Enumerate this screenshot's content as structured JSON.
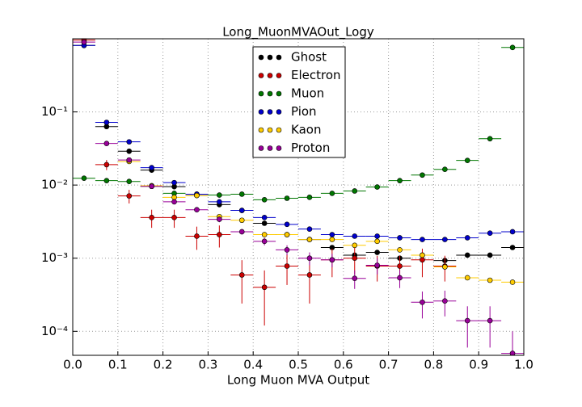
{
  "chart_data": {
    "type": "errorbar",
    "title": "Long_MuonMVAOut_Logy",
    "xlabel": "Long Muon MVA Output",
    "x": [
      0.025,
      0.075,
      0.125,
      0.175,
      0.225,
      0.275,
      0.325,
      0.375,
      0.425,
      0.475,
      0.525,
      0.575,
      0.625,
      0.675,
      0.725,
      0.775,
      0.825,
      0.875,
      0.925,
      0.975
    ],
    "xerr": 0.025,
    "xlim": [
      0,
      1
    ],
    "xticks": [
      {
        "value": 0,
        "label": "0.0"
      },
      {
        "value": 0.1,
        "label": "0.1"
      },
      {
        "value": 0.2,
        "label": "0.2"
      },
      {
        "value": 0.3,
        "label": "0.3"
      },
      {
        "value": 0.4,
        "label": "0.4"
      },
      {
        "value": 0.5,
        "label": "0.5"
      },
      {
        "value": 0.6,
        "label": "0.6"
      },
      {
        "value": 0.7,
        "label": "0.7"
      },
      {
        "value": 0.8,
        "label": "0.8"
      },
      {
        "value": 0.9,
        "label": "0.9"
      },
      {
        "value": 1,
        "label": "1.0"
      }
    ],
    "ylim": [
      4.7e-05,
      1.0
    ],
    "yticks": [
      {
        "value": 0.1,
        "label": "10⁻¹"
      },
      {
        "value": 0.01,
        "label": "10⁻²"
      },
      {
        "value": 0.001,
        "label": "10⁻³"
      },
      {
        "value": 0.0001,
        "label": "10⁻⁴"
      }
    ],
    "log_y": true,
    "grid": true,
    "legend": "upper center",
    "series": [
      {
        "name": "Ghost",
        "color": "#000000",
        "values": [
          0.81,
          0.063,
          0.029,
          0.016,
          0.0095,
          0.0072,
          0.0054,
          0.0045,
          0.003,
          0.0021,
          0.0018,
          0.0014,
          0.0011,
          0.0012,
          0.001,
          0.0011,
          0.00093,
          0.0011,
          0.0011,
          0.0014
        ]
      },
      {
        "name": "Electron",
        "color": "#cc0000",
        "values": [
          0.96,
          0.019,
          0.0071,
          0.0036,
          0.0036,
          0.002,
          0.0021,
          0.00059,
          0.0004,
          0.00078,
          0.00059,
          0.00095,
          0.001,
          0.00078,
          0.00078,
          0.00095,
          0.00078,
          null,
          null,
          null
        ],
        "errors": [
          0.02,
          0.003,
          0.0015,
          0.001,
          0.001,
          0.0007,
          0.0007,
          0.00035,
          0.00028,
          0.00035,
          0.00035,
          0.0004,
          0.0004,
          0.0003,
          0.0003,
          0.0004,
          0.0003,
          null,
          null,
          null
        ]
      },
      {
        "name": "Muon",
        "color": "#007700",
        "values": [
          0.0124,
          0.0115,
          0.0112,
          0.0096,
          0.0077,
          0.0075,
          0.0073,
          0.0075,
          0.0063,
          0.0066,
          0.0068,
          0.0077,
          0.0083,
          0.0094,
          0.0115,
          0.0137,
          0.0164,
          0.0217,
          0.043,
          0.76
        ]
      },
      {
        "name": "Pion",
        "color": "#0000cc",
        "values": [
          0.81,
          0.072,
          0.039,
          0.0173,
          0.0108,
          0.0075,
          0.0059,
          0.0045,
          0.0036,
          0.0029,
          0.0025,
          0.0021,
          0.002,
          0.002,
          0.0019,
          0.0018,
          0.0018,
          0.0019,
          0.0022,
          0.0023
        ]
      },
      {
        "name": "Kaon",
        "color": "#ffcc00",
        "values": [
          null,
          null,
          0.021,
          0.0098,
          0.0068,
          0.0072,
          0.0037,
          0.0033,
          0.0021,
          0.0021,
          0.0018,
          0.0018,
          0.0015,
          0.0017,
          0.0013,
          0.0011,
          0.00076,
          0.00054,
          0.0005,
          0.00047
        ]
      },
      {
        "name": "Proton",
        "color": "#990099",
        "values": [
          0.9,
          0.037,
          0.022,
          0.0096,
          0.0059,
          0.0046,
          0.0034,
          0.0023,
          0.0017,
          0.0013,
          0.001,
          0.00095,
          0.00053,
          0.0008,
          0.00054,
          0.00025,
          0.00026,
          0.00014,
          0.00014,
          5e-05
        ],
        "errors": [
          0.02,
          0.001,
          0.001,
          0.0005,
          0.0004,
          0.0003,
          0.0003,
          0.0002,
          0.0002,
          0.0002,
          0.0002,
          0.0002,
          0.00015,
          0.0002,
          0.00015,
          0.0001,
          0.0001,
          8e-05,
          8e-05,
          5e-05
        ]
      }
    ]
  }
}
